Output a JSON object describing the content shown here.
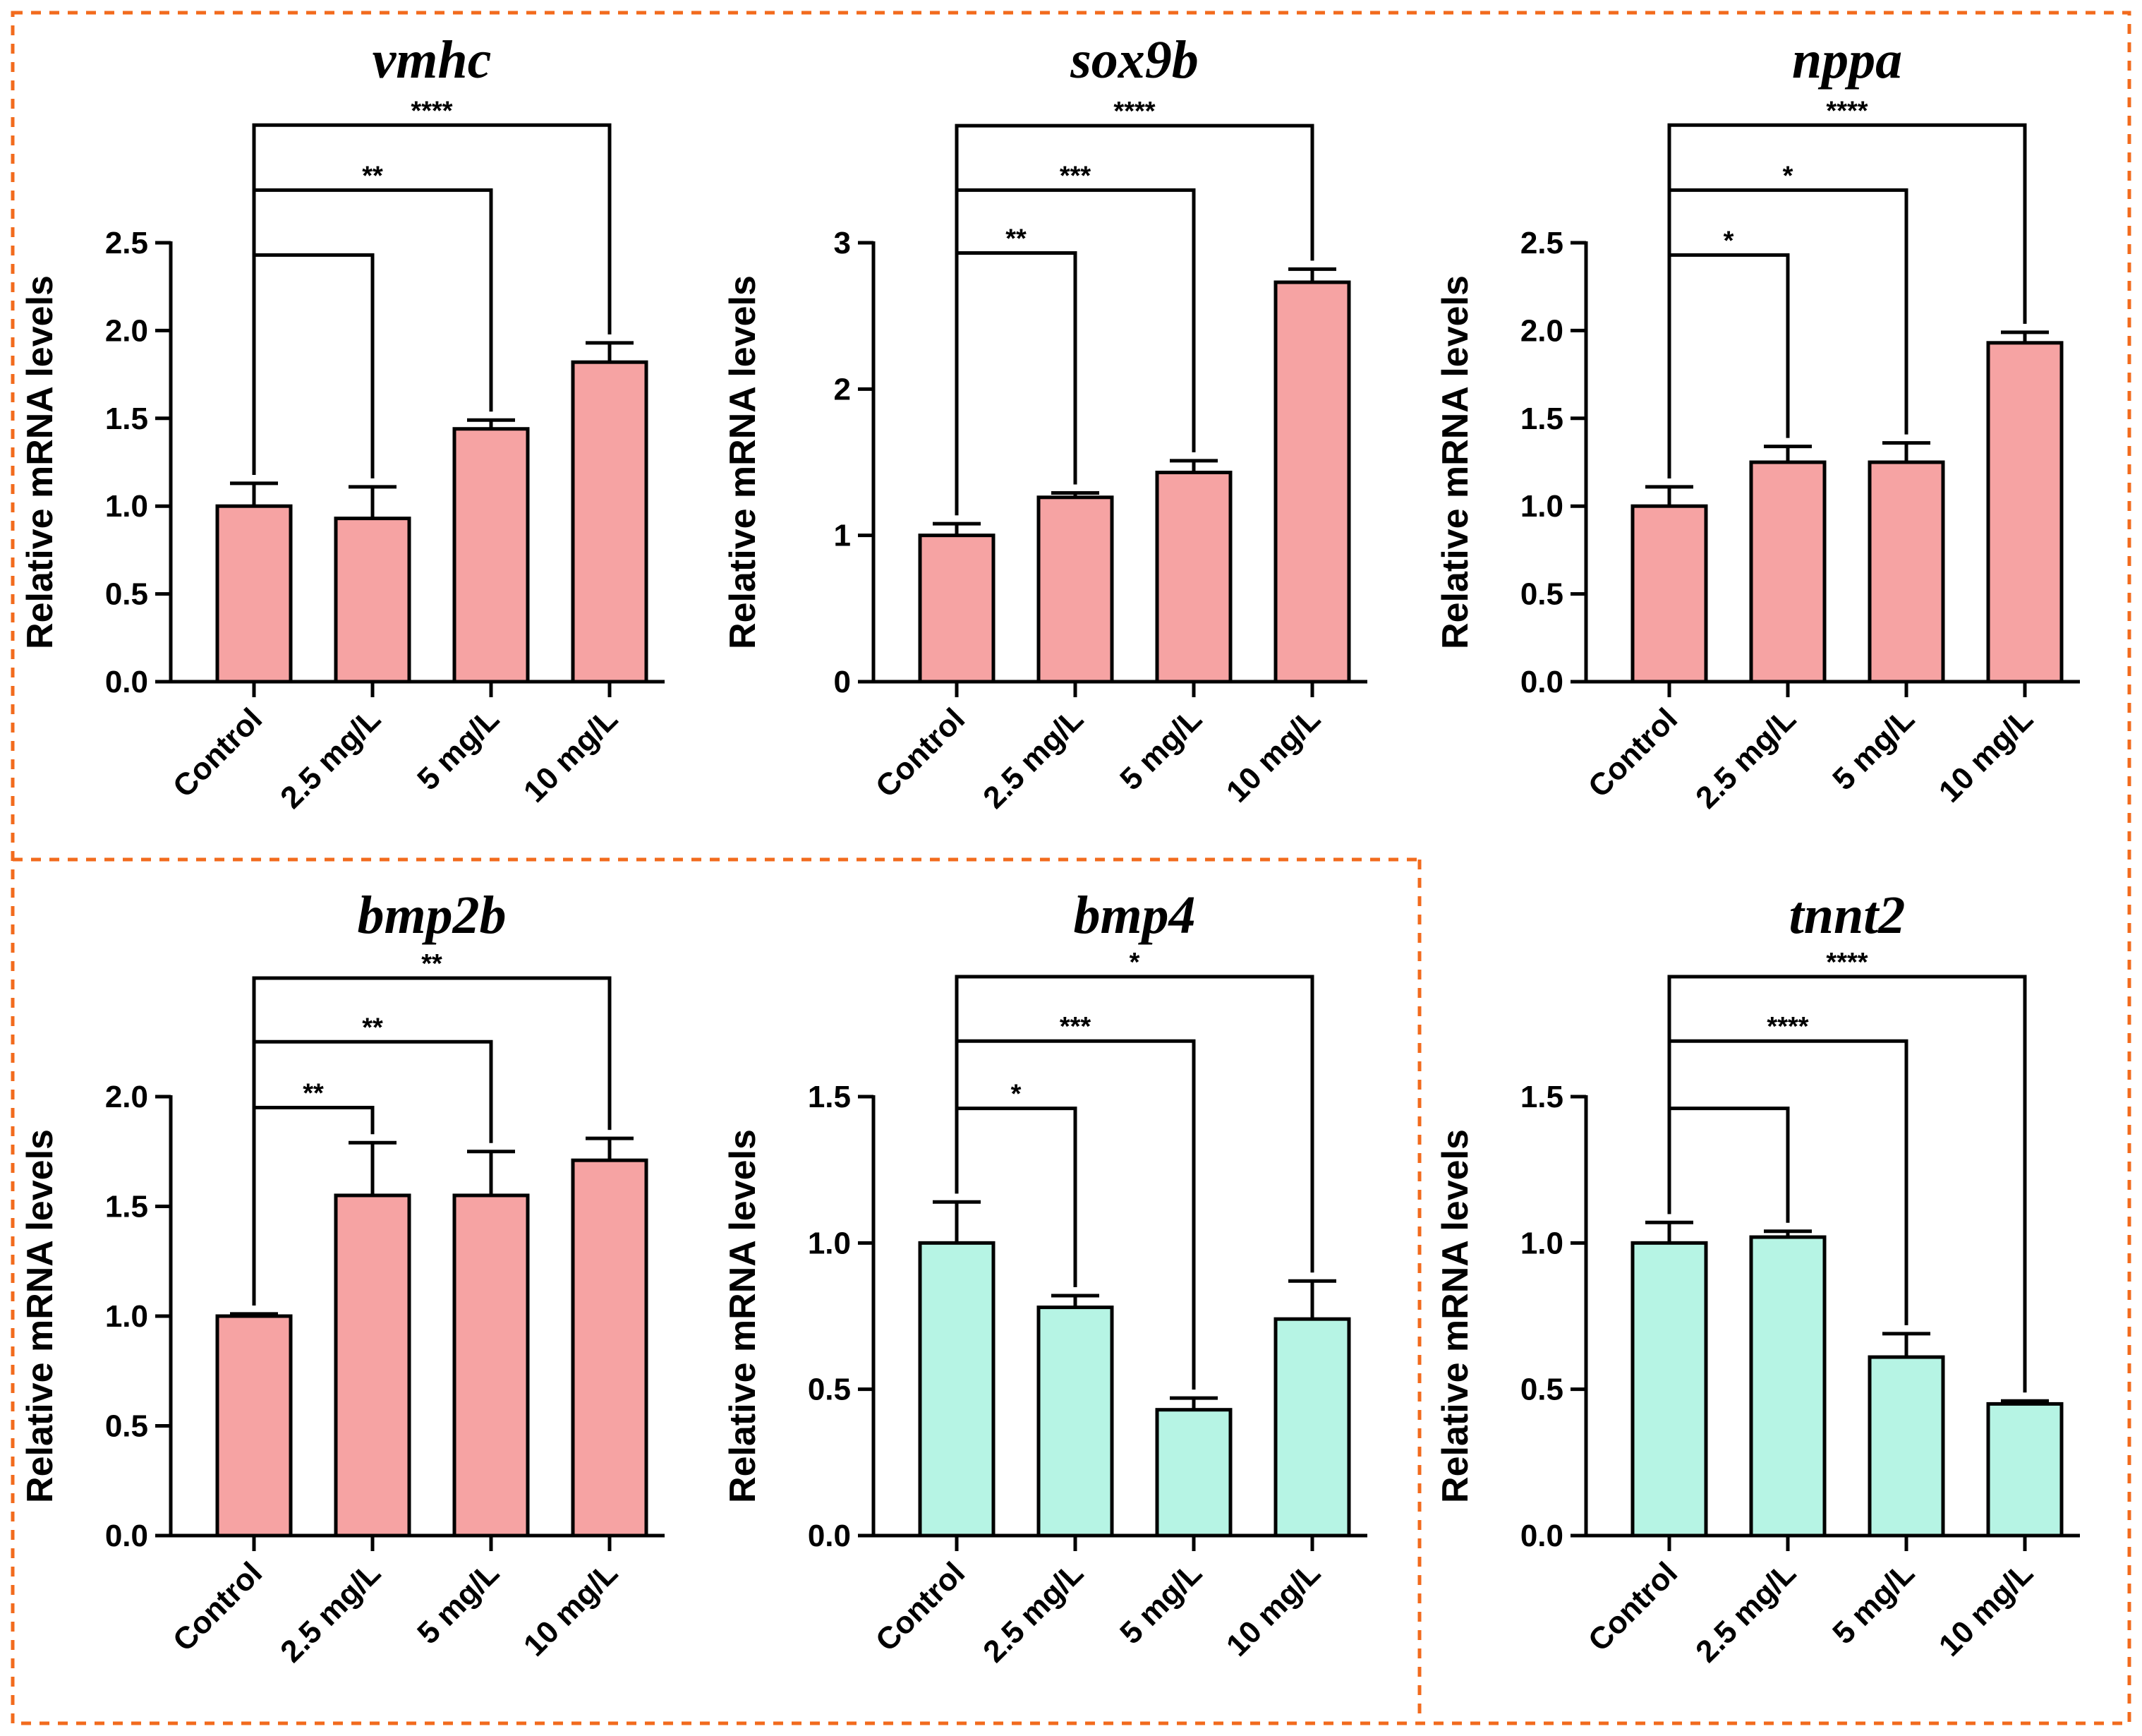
{
  "colors": {
    "bar_red": "#f6a3a3",
    "bar_teal": "#b6f4e4",
    "frame": "#f26b1d",
    "stroke": "#000000"
  },
  "y_axis_label": "Relative mRNA levels",
  "chart_data": [
    {
      "type": "bar",
      "title": "vmhc",
      "ylabel": "Relative mRNA levels",
      "categories": [
        "Control",
        "2.5 mg/L",
        "5 mg/L",
        "10 mg/L"
      ],
      "values": [
        1.0,
        0.93,
        1.44,
        1.82
      ],
      "errors": [
        0.13,
        0.18,
        0.05,
        0.11
      ],
      "ylim": [
        0,
        2.5
      ],
      "yticks": [
        0,
        0.5,
        1.0,
        1.5,
        2.0,
        2.5
      ],
      "ytick_labels": [
        "0.0",
        "0.5",
        "1.0",
        "1.5",
        "2.0",
        "2.5"
      ],
      "color": "#f6a3a3",
      "significance": [
        {
          "to": 1,
          "label": "",
          "level": 2.43
        },
        {
          "to": 2,
          "label": "**",
          "level": 2.8
        },
        {
          "to": 3,
          "label": "****",
          "level": 3.17
        }
      ]
    },
    {
      "type": "bar",
      "title": "sox9b",
      "ylabel": "Relative mRNA levels",
      "categories": [
        "Control",
        "2.5 mg/L",
        "5 mg/L",
        "10 mg/L"
      ],
      "values": [
        1.0,
        1.26,
        1.43,
        2.73
      ],
      "errors": [
        0.08,
        0.03,
        0.08,
        0.09
      ],
      "ylim": [
        0,
        3
      ],
      "yticks": [
        0,
        1,
        2,
        3
      ],
      "ytick_labels": [
        "0",
        "1",
        "2",
        "3"
      ],
      "color": "#f6a3a3",
      "significance": [
        {
          "to": 1,
          "label": "**",
          "level": 2.93
        },
        {
          "to": 2,
          "label": "***",
          "level": 3.36
        },
        {
          "to": 3,
          "label": "****",
          "level": 3.8
        }
      ]
    },
    {
      "type": "bar",
      "title": "nppa",
      "ylabel": "Relative mRNA levels",
      "categories": [
        "Control",
        "2.5 mg/L",
        "5 mg/L",
        "10 mg/L"
      ],
      "values": [
        1.0,
        1.25,
        1.25,
        1.93
      ],
      "errors": [
        0.11,
        0.09,
        0.11,
        0.06
      ],
      "ylim": [
        0,
        2.5
      ],
      "yticks": [
        0,
        0.5,
        1.0,
        1.5,
        2.0,
        2.5
      ],
      "ytick_labels": [
        "0.0",
        "0.5",
        "1.0",
        "1.5",
        "2.0",
        "2.5"
      ],
      "color": "#f6a3a3",
      "significance": [
        {
          "to": 1,
          "label": "*",
          "level": 2.43
        },
        {
          "to": 2,
          "label": "*",
          "level": 2.8
        },
        {
          "to": 3,
          "label": "****",
          "level": 3.17
        }
      ]
    },
    {
      "type": "bar",
      "title": "bmp2b",
      "ylabel": "Relative mRNA levels",
      "categories": [
        "Control",
        "2.5 mg/L",
        "5 mg/L",
        "10 mg/L"
      ],
      "values": [
        1.0,
        1.55,
        1.55,
        1.71
      ],
      "errors": [
        0.01,
        0.24,
        0.2,
        0.1
      ],
      "ylim": [
        0,
        2.0
      ],
      "yticks": [
        0,
        0.5,
        1.0,
        1.5,
        2.0
      ],
      "ytick_labels": [
        "0.0",
        "0.5",
        "1.0",
        "1.5",
        "2.0"
      ],
      "color": "#f6a3a3",
      "significance": [
        {
          "to": 1,
          "label": "**",
          "level": 1.95
        },
        {
          "to": 2,
          "label": "**",
          "level": 2.25
        },
        {
          "to": 3,
          "label": "**",
          "level": 2.54
        }
      ]
    },
    {
      "type": "bar",
      "title": "bmp4",
      "ylabel": "Relative mRNA levels",
      "categories": [
        "Control",
        "2.5 mg/L",
        "5 mg/L",
        "10 mg/L"
      ],
      "values": [
        1.0,
        0.78,
        0.43,
        0.74
      ],
      "errors": [
        0.14,
        0.04,
        0.04,
        0.13
      ],
      "ylim": [
        0,
        1.5
      ],
      "yticks": [
        0,
        0.5,
        1.0,
        1.5
      ],
      "ytick_labels": [
        "0.0",
        "0.5",
        "1.0",
        "1.5"
      ],
      "color": "#b6f4e4",
      "significance": [
        {
          "to": 1,
          "label": "*",
          "level": 1.46
        },
        {
          "to": 2,
          "label": "***",
          "level": 1.69
        },
        {
          "to": 3,
          "label": "*",
          "level": 1.91
        }
      ]
    },
    {
      "type": "bar",
      "title": "tnnt2",
      "ylabel": "Relative mRNA levels",
      "categories": [
        "Control",
        "2.5 mg/L",
        "5 mg/L",
        "10 mg/L"
      ],
      "values": [
        1.0,
        1.02,
        0.61,
        0.45
      ],
      "errors": [
        0.07,
        0.02,
        0.08,
        0.01
      ],
      "ylim": [
        0,
        1.5
      ],
      "yticks": [
        0,
        0.5,
        1.0,
        1.5
      ],
      "ytick_labels": [
        "0.0",
        "0.5",
        "1.0",
        "1.5"
      ],
      "color": "#b6f4e4",
      "significance": [
        {
          "to": 1,
          "label": "",
          "level": 1.46
        },
        {
          "to": 2,
          "label": "****",
          "level": 1.69
        },
        {
          "to": 3,
          "label": "****",
          "level": 1.91
        }
      ]
    }
  ]
}
